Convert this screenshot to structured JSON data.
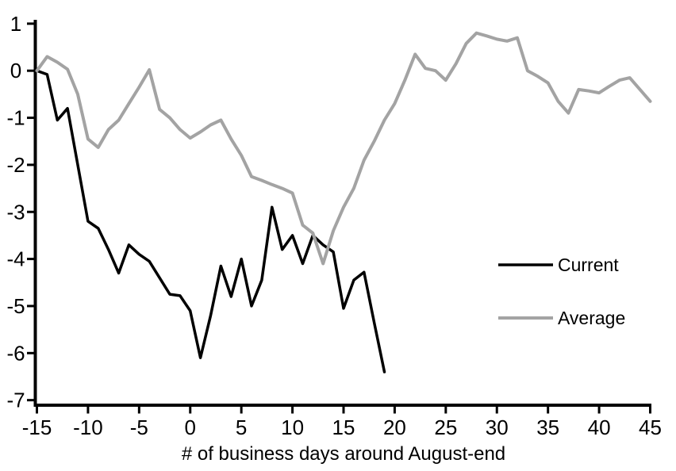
{
  "figure": {
    "background": "#ffffff",
    "axis_color": "#000000"
  },
  "chart_data": {
    "type": "line",
    "title": "",
    "xlabel": "# of business days around August-end",
    "ylabel": "",
    "xlim": [
      -15,
      45
    ],
    "ylim": [
      -7,
      1
    ],
    "x_ticks": [
      -15,
      -10,
      -5,
      0,
      5,
      10,
      15,
      20,
      25,
      30,
      35,
      40,
      45
    ],
    "y_ticks": [
      1,
      0,
      -1,
      -2,
      -3,
      -4,
      -5,
      -6,
      -7
    ],
    "grid": false,
    "legend_position": "right-center",
    "series": [
      {
        "name": "Current",
        "color": "#000000",
        "x": [
          -15,
          -14,
          -13,
          -12,
          -11,
          -10,
          -9,
          -8,
          -7,
          -6,
          -5,
          -4,
          -3,
          -2,
          -1,
          0,
          1,
          2,
          3,
          4,
          5,
          6,
          7,
          8,
          9,
          10,
          11,
          12,
          13,
          14,
          15,
          16,
          17,
          18,
          19
        ],
        "y": [
          0,
          -0.08,
          -1.05,
          -0.8,
          -2.0,
          -3.2,
          -3.35,
          -3.8,
          -4.3,
          -3.7,
          -3.9,
          -4.05,
          -4.4,
          -4.75,
          -4.78,
          -5.1,
          -6.1,
          -5.2,
          -4.15,
          -4.8,
          -4.0,
          -5.0,
          -4.45,
          -2.9,
          -3.8,
          -3.5,
          -4.1,
          -3.5,
          -3.7,
          -3.85,
          -5.05,
          -4.45,
          -4.28,
          -5.35,
          -6.4
        ]
      },
      {
        "name": "Average",
        "color": "#a3a3a3",
        "x": [
          -15,
          -14,
          -13,
          -12,
          -11,
          -10,
          -9,
          -8,
          -7,
          -6,
          -5,
          -4,
          -3,
          -2,
          -1,
          0,
          1,
          2,
          3,
          4,
          5,
          6,
          7,
          8,
          9,
          10,
          11,
          12,
          13,
          14,
          15,
          16,
          17,
          18,
          19,
          20,
          21,
          22,
          23,
          24,
          25,
          26,
          27,
          28,
          29,
          30,
          31,
          32,
          33,
          34,
          35,
          36,
          37,
          38,
          39,
          40,
          41,
          42,
          43,
          44,
          45
        ],
        "y": [
          0,
          0.3,
          0.18,
          0.03,
          -0.5,
          -1.45,
          -1.63,
          -1.25,
          -1.05,
          -0.7,
          -0.35,
          0.02,
          -0.82,
          -1.0,
          -1.25,
          -1.43,
          -1.3,
          -1.15,
          -1.05,
          -1.45,
          -1.8,
          -2.25,
          -2.33,
          -2.42,
          -2.5,
          -2.6,
          -3.28,
          -3.45,
          -4.1,
          -3.4,
          -2.9,
          -2.5,
          -1.9,
          -1.5,
          -1.05,
          -0.7,
          -0.2,
          0.35,
          0.05,
          0.0,
          -0.2,
          0.15,
          0.58,
          0.8,
          0.74,
          0.67,
          0.63,
          0.7,
          0.0,
          -0.12,
          -0.26,
          -0.65,
          -0.9,
          -0.4,
          -0.43,
          -0.47,
          -0.33,
          -0.2,
          -0.15,
          -0.4,
          -0.65
        ]
      }
    ]
  }
}
